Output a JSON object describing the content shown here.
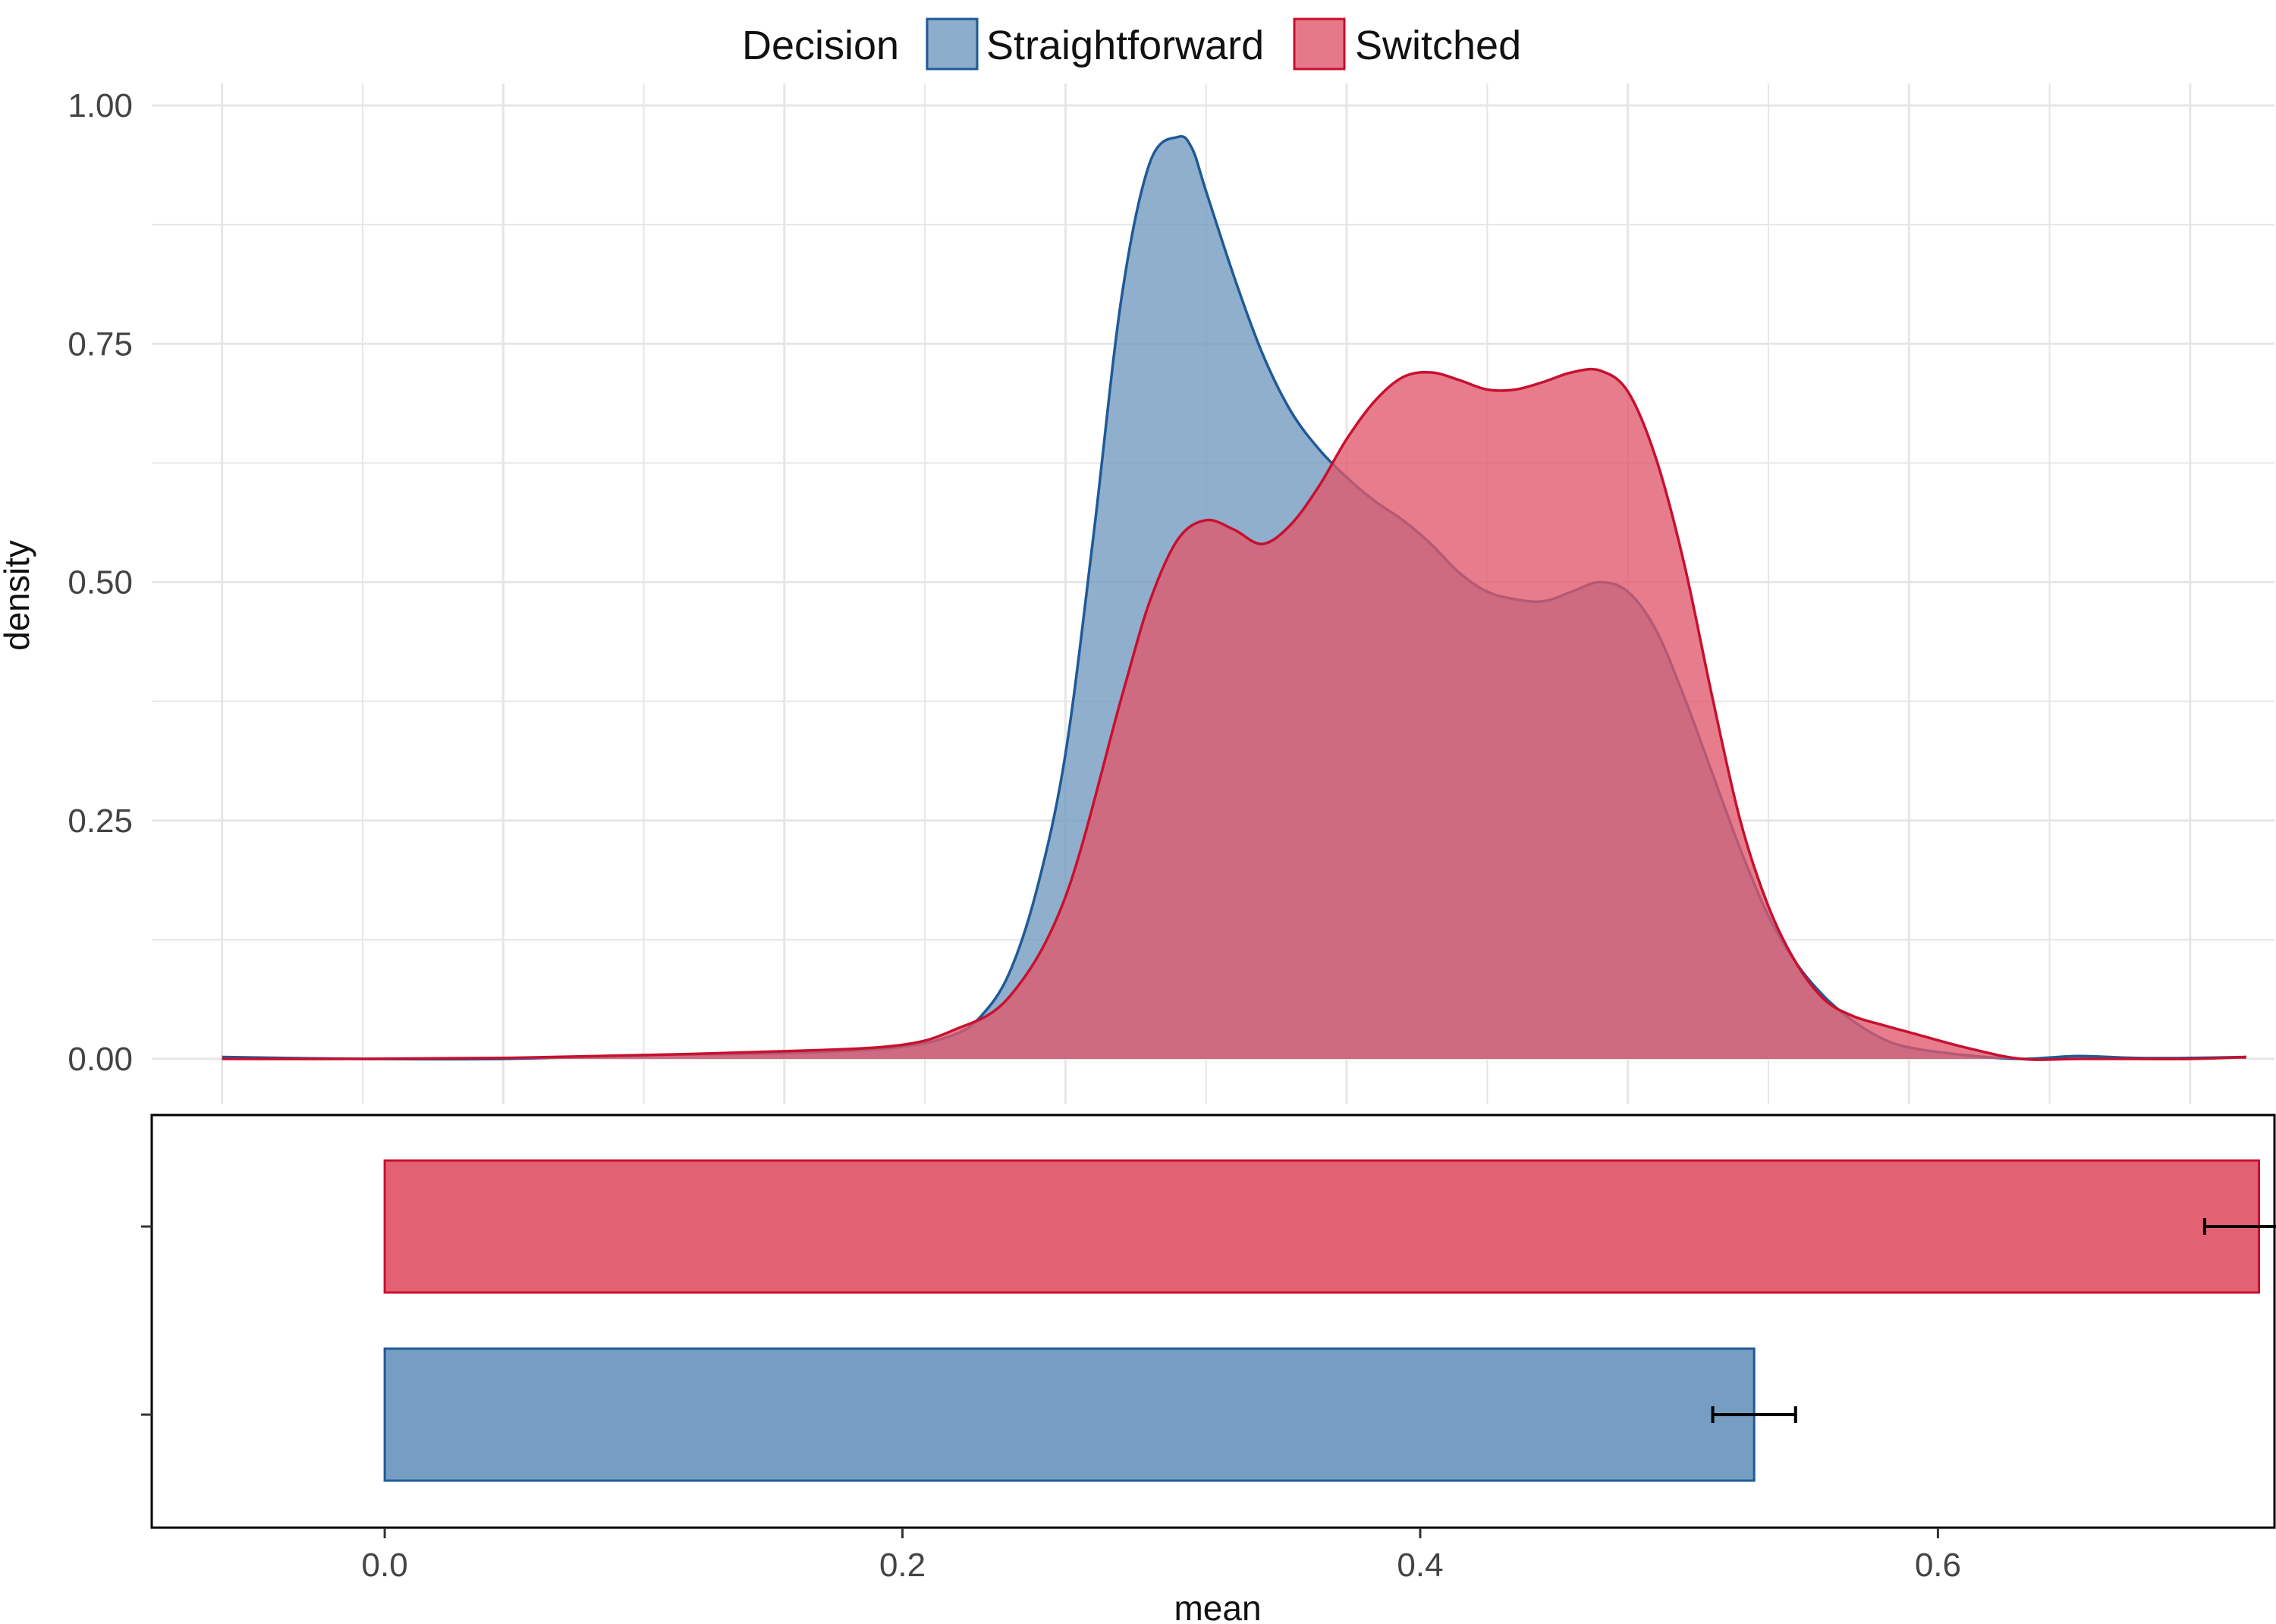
{
  "legend": {
    "title": "Decision",
    "items": [
      {
        "label": "Straightforward",
        "fill": "#6f98bf",
        "stroke": "#1f5a96"
      },
      {
        "label": "Switched",
        "fill": "#e0586b",
        "stroke": "#c8102e"
      }
    ]
  },
  "chart_data": [
    {
      "type": "area",
      "xlabel": "",
      "ylabel": "density",
      "xlim": [
        -0.025,
        0.73
      ],
      "ylim": [
        0,
        1.0
      ],
      "yticks": [
        "0.00",
        "0.25",
        "0.50",
        "0.75",
        "1.00"
      ],
      "grid": true,
      "legend_position": "top",
      "series": [
        {
          "name": "Straightforward",
          "color": "#1f5a96",
          "fill": "#6f98bf",
          "x": [
            0.0,
            0.05,
            0.1,
            0.15,
            0.2,
            0.24,
            0.26,
            0.27,
            0.28,
            0.29,
            0.3,
            0.31,
            0.32,
            0.33,
            0.34,
            0.345,
            0.35,
            0.36,
            0.37,
            0.38,
            0.39,
            0.4,
            0.41,
            0.42,
            0.43,
            0.44,
            0.45,
            0.46,
            0.47,
            0.48,
            0.49,
            0.5,
            0.51,
            0.52,
            0.53,
            0.54,
            0.55,
            0.56,
            0.57,
            0.58,
            0.59,
            0.6,
            0.62,
            0.64,
            0.66,
            0.68,
            0.7,
            0.72
          ],
          "y": [
            0.002,
            0.0,
            0.0,
            0.004,
            0.006,
            0.012,
            0.025,
            0.045,
            0.09,
            0.18,
            0.32,
            0.55,
            0.8,
            0.94,
            0.967,
            0.955,
            0.91,
            0.82,
            0.74,
            0.68,
            0.64,
            0.61,
            0.585,
            0.565,
            0.54,
            0.51,
            0.49,
            0.482,
            0.48,
            0.49,
            0.5,
            0.49,
            0.45,
            0.38,
            0.3,
            0.22,
            0.15,
            0.1,
            0.065,
            0.04,
            0.022,
            0.012,
            0.004,
            0.0,
            0.003,
            0.001,
            0.001,
            0.002
          ]
        },
        {
          "name": "Switched",
          "color": "#c8102e",
          "fill": "#e0586b",
          "x": [
            0.0,
            0.05,
            0.1,
            0.15,
            0.2,
            0.24,
            0.26,
            0.28,
            0.3,
            0.32,
            0.33,
            0.34,
            0.35,
            0.36,
            0.37,
            0.38,
            0.39,
            0.4,
            0.41,
            0.42,
            0.43,
            0.44,
            0.45,
            0.46,
            0.47,
            0.48,
            0.49,
            0.5,
            0.51,
            0.52,
            0.53,
            0.54,
            0.55,
            0.56,
            0.57,
            0.58,
            0.59,
            0.6,
            0.62,
            0.64,
            0.66,
            0.68,
            0.7,
            0.72
          ],
          "y": [
            0.0,
            0.0,
            0.001,
            0.004,
            0.008,
            0.014,
            0.03,
            0.065,
            0.17,
            0.38,
            0.48,
            0.545,
            0.565,
            0.555,
            0.54,
            0.56,
            0.6,
            0.65,
            0.69,
            0.715,
            0.72,
            0.712,
            0.702,
            0.702,
            0.71,
            0.72,
            0.722,
            0.7,
            0.63,
            0.52,
            0.38,
            0.25,
            0.16,
            0.1,
            0.062,
            0.045,
            0.036,
            0.028,
            0.012,
            0.0,
            0.0,
            0.0,
            0.0,
            0.002
          ]
        }
      ]
    },
    {
      "type": "bar",
      "orientation": "horizontal",
      "xlabel": "mean",
      "ylabel": "",
      "xlim": [
        -0.09,
        0.73
      ],
      "xticks": [
        "0.0",
        "0.2",
        "0.4",
        "0.6"
      ],
      "grid": false,
      "categories": [
        "Switched",
        "Straightforward"
      ],
      "values": [
        0.724,
        0.529
      ],
      "error_low": [
        0.703,
        0.513
      ],
      "error_high": [
        0.743,
        0.545
      ]
    }
  ]
}
